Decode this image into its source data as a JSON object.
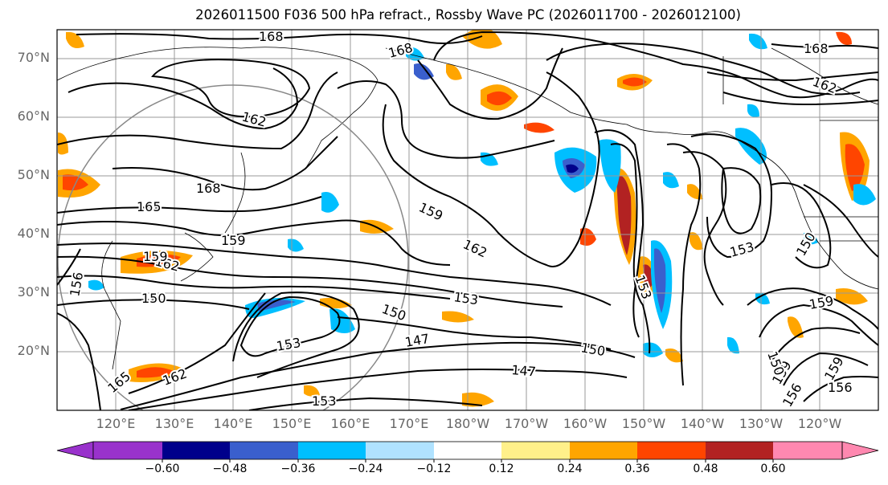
{
  "title": "2026011500 F036 500 hPa refract., Rossby Wave PC (2026011700 - 2026012100)",
  "lat_labels": [
    "70°N",
    "60°N",
    "50°N",
    "40°N",
    "30°N",
    "20°N"
  ],
  "lon_labels": [
    "120°E",
    "130°E",
    "140°E",
    "150°E",
    "160°E",
    "170°E",
    "180°W",
    "170°W",
    "160°W",
    "150°W",
    "140°W",
    "130°W",
    "120°W"
  ],
  "colorbar": {
    "colors": [
      "#9932cc",
      "#00008b",
      "#3a5fcd",
      "#00bfff",
      "#b0e2ff",
      "#ffffff",
      "#fff08a",
      "#ffa500",
      "#ff4500",
      "#b22222",
      "#ff88b0"
    ],
    "ticks": [
      "−0.60",
      "−0.48",
      "−0.36",
      "−0.24",
      "−0.12",
      "0.12",
      "0.24",
      "0.36",
      "0.48",
      "0.60"
    ]
  },
  "contour_labels": [
    "168",
    "168",
    "168",
    "162",
    "162",
    "162",
    "168",
    "165",
    "159",
    "159",
    "162",
    "153",
    "153",
    "150",
    "150",
    "147",
    "147",
    "150",
    "153",
    "153",
    "159",
    "159",
    "159",
    "156",
    "156",
    "156",
    "150",
    "150",
    "162",
    "165",
    "153",
    "159"
  ]
}
